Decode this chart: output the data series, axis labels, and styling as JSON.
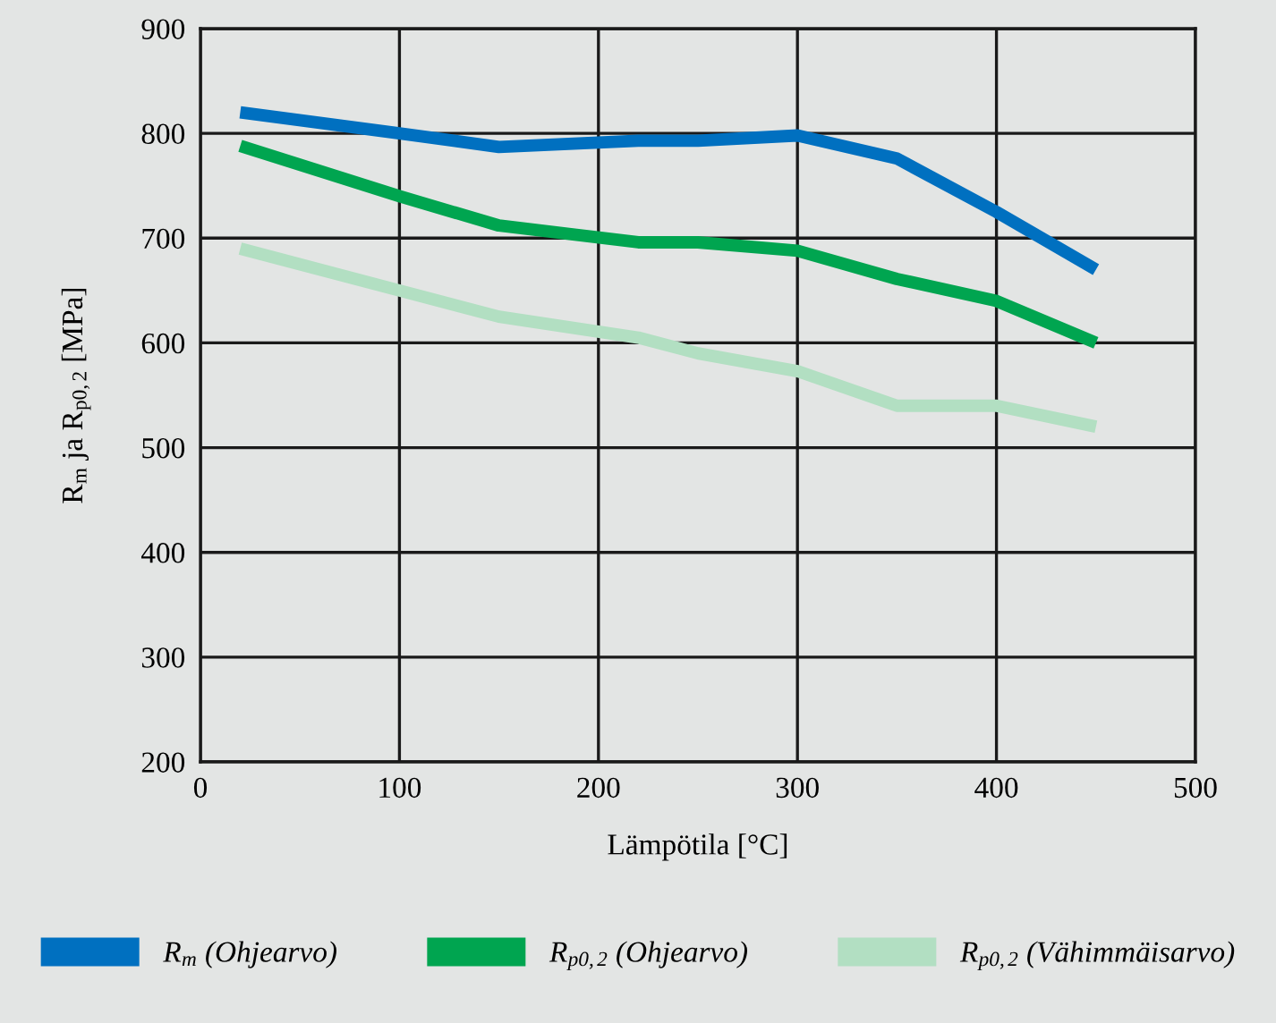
{
  "chart_data": {
    "type": "line",
    "xlabel": "Lämpötila [°C]",
    "ylabel": "R$_{m}$ ja R$_{p0,2}$ [MPa]",
    "x": [
      20,
      100,
      150,
      220,
      250,
      300,
      350,
      400,
      450
    ],
    "series": [
      {
        "name": "R$_{m}$ (Ohjearvo)",
        "color": "#0070c0",
        "values": [
          820,
          800,
          787,
          793,
          793,
          798,
          776,
          725,
          670
        ]
      },
      {
        "name": "R$_{p0,2}$ (Ohjearvo)",
        "color": "#00a550",
        "values": [
          788,
          740,
          712,
          696,
          696,
          688,
          661,
          640,
          600
        ]
      },
      {
        "name": "R$_{p0,2}$ (Vähimmäisarvo)",
        "color": "#b2dfc2",
        "values": [
          690,
          650,
          625,
          605,
          590,
          573,
          540,
          540,
          520
        ]
      }
    ],
    "xlim": [
      0,
      500
    ],
    "xticks": [
      0,
      100,
      200,
      300,
      400,
      500
    ],
    "ylim": [
      200,
      900
    ],
    "yticks": [
      200,
      300,
      400,
      500,
      600,
      700,
      800,
      900
    ],
    "grid": true,
    "legend": "bottom",
    "marker": "none",
    "line_style": "solid"
  }
}
